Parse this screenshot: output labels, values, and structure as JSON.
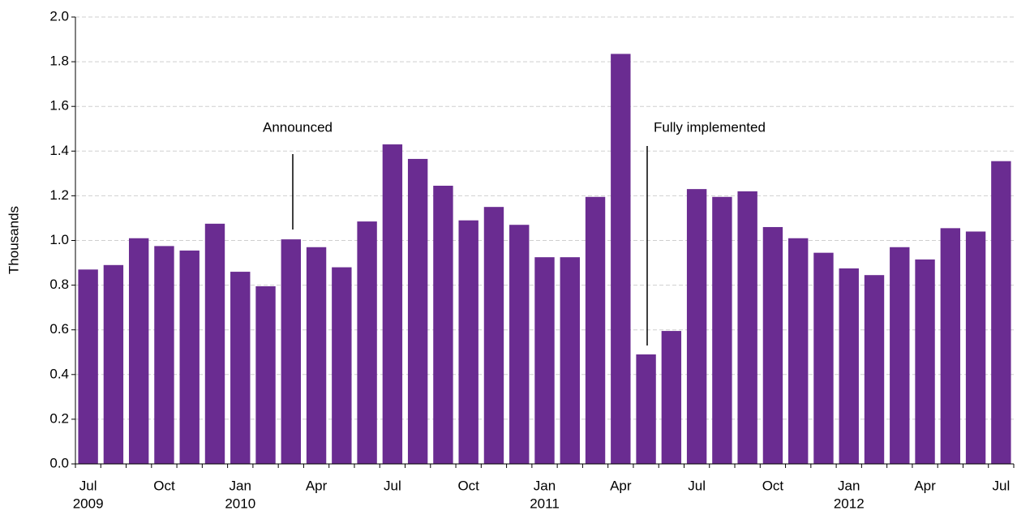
{
  "chart_data": {
    "type": "bar",
    "y_label": "Thousands",
    "categories": [
      "Jul",
      null,
      null,
      "Oct",
      null,
      null,
      "Jan",
      null,
      null,
      "Apr",
      null,
      null,
      "Jul",
      null,
      null,
      "Oct",
      null,
      null,
      "Jan",
      null,
      null,
      "Apr",
      null,
      null,
      "Jul",
      null,
      null,
      "Oct",
      null,
      null,
      "Jan",
      null,
      null,
      "Apr",
      null,
      null,
      "Jul"
    ],
    "years": [
      "2009",
      "2010",
      "2011",
      "2012"
    ],
    "values": [
      0.87,
      0.89,
      1.01,
      0.975,
      0.955,
      1.075,
      0.86,
      0.795,
      1.005,
      0.97,
      0.88,
      1.085,
      1.43,
      1.365,
      1.245,
      1.09,
      1.15,
      1.07,
      0.925,
      0.925,
      1.195,
      1.835,
      0.49,
      0.595,
      1.23,
      1.195,
      1.22,
      1.06,
      1.01,
      0.945,
      0.875,
      0.845,
      0.97,
      0.915,
      1.055,
      1.04,
      1.355
    ],
    "color": "#6a2c91",
    "ylim": [
      0,
      2
    ],
    "yticks": [
      {
        "value": 0,
        "label": "0.0"
      },
      0.2,
      0.4,
      0.6,
      0.8,
      {
        "value": 1,
        "label": "1.0"
      },
      1.2,
      1.4,
      1.6,
      1.8,
      {
        "value": 2,
        "label": "2.0"
      }
    ],
    "grid": true,
    "annotations": [
      "Announced",
      "Fully implemented"
    ]
  }
}
